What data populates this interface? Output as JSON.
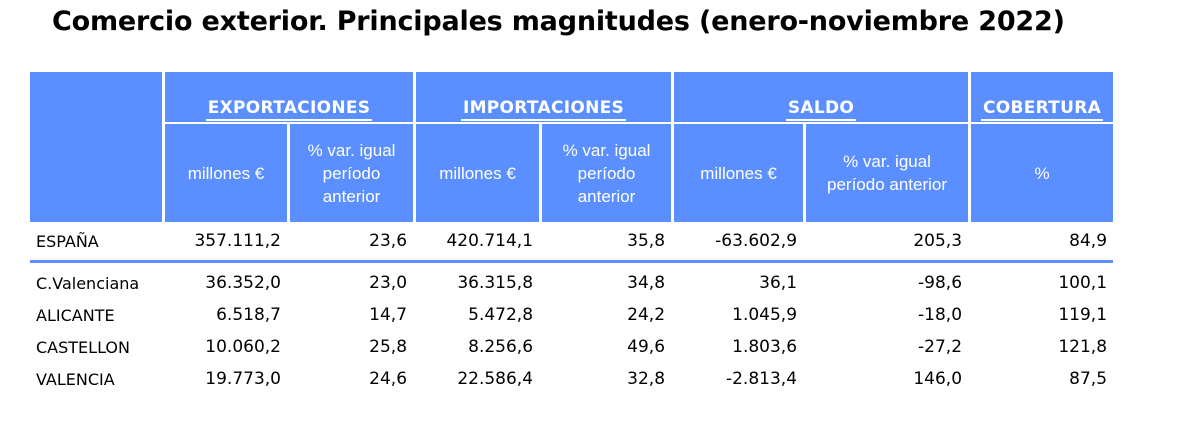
{
  "title": "Comercio exterior. Principales magnitudes (enero-noviembre 2022)",
  "groups": {
    "exportaciones": "EXPORTACIONES",
    "importaciones": "IMPORTACIONES",
    "saldo": "SALDO",
    "cobertura": "COBERTURA"
  },
  "subheaders": {
    "exp_millones": "millones €",
    "exp_var": "% var. igual período anterior",
    "imp_millones": "millones €",
    "imp_var": "% var. igual período anterior",
    "sal_millones": "millones €",
    "sal_var": "% var. igual período anterior",
    "cob_pct": "%"
  },
  "rows": [
    {
      "name": "ESPAÑA",
      "exp": "357.111,2",
      "exp_var": "23,6",
      "imp": "420.714,1",
      "imp_var": "35,8",
      "saldo": "-63.602,9",
      "saldo_var": "205,3",
      "cobertura": "84,9"
    },
    {
      "name": "C.Valenciana",
      "exp": "36.352,0",
      "exp_var": "23,0",
      "imp": "36.315,8",
      "imp_var": "34,8",
      "saldo": "36,1",
      "saldo_var": "-98,6",
      "cobertura": "100,1"
    },
    {
      "name": "ALICANTE",
      "exp": "6.518,7",
      "exp_var": "14,7",
      "imp": "5.472,8",
      "imp_var": "24,2",
      "saldo": "1.045,9",
      "saldo_var": "-18,0",
      "cobertura": "119,1"
    },
    {
      "name": "CASTELLON",
      "exp": "10.060,2",
      "exp_var": "25,8",
      "imp": "8.256,6",
      "imp_var": "49,6",
      "saldo": "1.803,6",
      "saldo_var": "-27,2",
      "cobertura": "121,8"
    },
    {
      "name": "VALENCIA",
      "exp": "19.773,0",
      "exp_var": "24,6",
      "imp": "22.586,4",
      "imp_var": "32,8",
      "saldo": "-2.813,4",
      "saldo_var": "146,0",
      "cobertura": "87,5"
    }
  ]
}
